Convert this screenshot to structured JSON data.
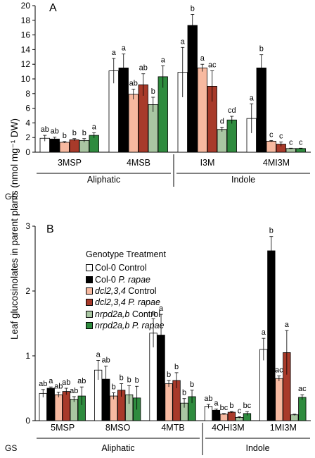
{
  "ylabel": "Leaf glucosinolates in parent plants (nmol mg⁻¹ DW)",
  "gs_label": "GS",
  "legend": {
    "header": "Genotype Treatment",
    "items": [
      {
        "genotype": "Col-0",
        "treatment": "Control",
        "italic_genotype": false,
        "italic_treatment": false,
        "color": "#ffffff"
      },
      {
        "genotype": "Col-0",
        "treatment": "P. rapae",
        "italic_genotype": false,
        "italic_treatment": true,
        "color": "#000000"
      },
      {
        "genotype": "dcl2,3,4",
        "treatment": "Control",
        "italic_genotype": true,
        "italic_treatment": false,
        "color": "#f7b9a0"
      },
      {
        "genotype": "dcl2,3,4",
        "treatment": "P. rapae",
        "italic_genotype": true,
        "italic_treatment": true,
        "color": "#a83a2a"
      },
      {
        "genotype": "nrpd2a,b",
        "treatment": "Control",
        "italic_genotype": true,
        "italic_treatment": false,
        "color": "#a9c6a2"
      },
      {
        "genotype": "nrpd2a,b",
        "treatment": "P. rapae",
        "italic_genotype": true,
        "italic_treatment": true,
        "color": "#2e8b3e"
      }
    ]
  },
  "chart_data": [
    {
      "panel": "A",
      "type": "bar",
      "ylim": [
        0,
        20
      ],
      "yticks": [
        "0",
        "2",
        "4",
        "6",
        "8",
        "10",
        "12",
        "14",
        "16",
        "18",
        "20"
      ],
      "categories": [
        "3MSP",
        "4MSB",
        "I3M",
        "4MI3M"
      ],
      "groups": [
        {
          "label": "Aliphatic",
          "categories": [
            "3MSP",
            "4MSB"
          ]
        },
        {
          "label": "Indole",
          "categories": [
            "I3M",
            "4MI3M"
          ]
        }
      ],
      "series_colors": [
        "#ffffff",
        "#000000",
        "#f7b9a0",
        "#a83a2a",
        "#a9c6a2",
        "#2e8b3e"
      ],
      "values": [
        [
          1.9,
          1.8,
          1.35,
          1.7,
          1.6,
          2.3
        ],
        [
          11.1,
          11.5,
          7.9,
          9.2,
          6.5,
          10.3
        ],
        [
          10.9,
          17.3,
          11.5,
          9.0,
          3.1,
          4.4
        ],
        [
          4.6,
          11.5,
          1.5,
          1.1,
          0.5,
          0.5
        ]
      ],
      "errors": [
        [
          0.4,
          0.25,
          0.1,
          0.15,
          0.25,
          0.35
        ],
        [
          1.7,
          1.9,
          0.7,
          1.5,
          1.0,
          1.5
        ],
        [
          3.4,
          1.5,
          0.5,
          2.1,
          0.3,
          0.5
        ],
        [
          2.0,
          1.8,
          0.1,
          0.3,
          0.05,
          0.05
        ]
      ],
      "letters": [
        [
          "ab",
          "ab",
          "b",
          "b",
          "b",
          "a"
        ],
        [
          "a",
          "a",
          "ab",
          "ab",
          "b",
          "a"
        ],
        [
          "a",
          "b",
          "a",
          "ac",
          "d",
          "cd"
        ],
        [
          "a",
          "b",
          "c",
          "c",
          "c",
          "c"
        ]
      ]
    },
    {
      "panel": "B",
      "type": "bar",
      "ylim": [
        0,
        3
      ],
      "yticks": [
        "0",
        "1",
        "2",
        "3"
      ],
      "categories": [
        "5MSP",
        "8MSO",
        "4MTB",
        "4OHI3M",
        "1MI3M"
      ],
      "groups": [
        {
          "label": "Aliphatic",
          "categories": [
            "5MSP",
            "8MSO",
            "4MTB"
          ]
        },
        {
          "label": "Indole",
          "categories": [
            "4OHI3M",
            "1MI3M"
          ]
        }
      ],
      "series_colors": [
        "#ffffff",
        "#000000",
        "#f7b9a0",
        "#a83a2a",
        "#a9c6a2",
        "#2e8b3e"
      ],
      "values": [
        [
          0.42,
          0.5,
          0.4,
          0.45,
          0.33,
          0.38
        ],
        [
          0.78,
          0.64,
          0.38,
          0.47,
          0.4,
          0.35
        ],
        [
          1.35,
          1.32,
          0.57,
          0.62,
          0.27,
          0.37
        ],
        [
          0.22,
          0.16,
          0.1,
          0.13,
          0.05,
          0.11
        ],
        [
          1.1,
          2.62,
          0.65,
          1.05,
          0.09,
          0.36
        ]
      ],
      "errors": [
        [
          0.06,
          0.02,
          0.04,
          0.05,
          0.04,
          0.14
        ],
        [
          0.15,
          0.2,
          0.05,
          0.1,
          0.14,
          0.18
        ],
        [
          0.22,
          0.32,
          0.05,
          0.12,
          0.07,
          0.1
        ],
        [
          0.03,
          0.02,
          0.01,
          0.01,
          0.01,
          0.03
        ],
        [
          0.17,
          0.22,
          0.04,
          0.34,
          0.01,
          0.04
        ]
      ],
      "letters": [
        [
          "ab",
          "a",
          "ab",
          "ab",
          "ab",
          "ab"
        ],
        [
          "a",
          "ab",
          "b",
          "b",
          "b",
          "b"
        ],
        [
          "a",
          "a",
          "b",
          "b",
          "b",
          "b"
        ],
        [
          "ab",
          "a",
          "bc",
          "b",
          "c",
          "bc"
        ],
        [
          "a",
          "b",
          "ac",
          "a",
          "",
          "ac"
        ]
      ]
    }
  ]
}
